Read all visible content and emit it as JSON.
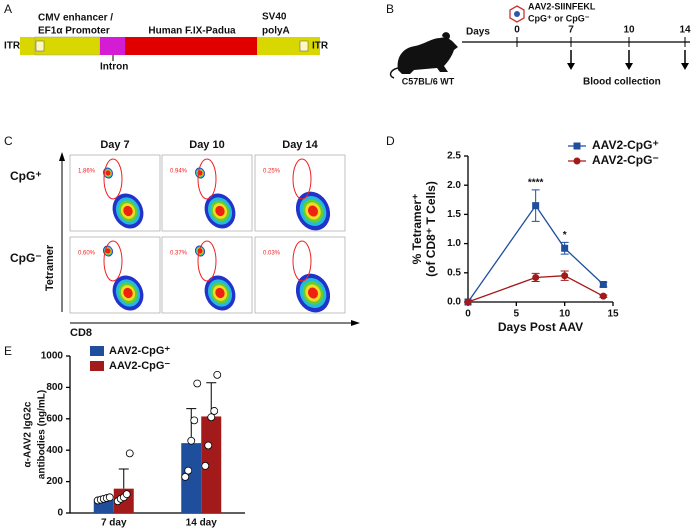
{
  "panel_labels": [
    "A",
    "B",
    "C",
    "D",
    "E"
  ],
  "construct": {
    "itr_left": "ITR",
    "promoter": [
      "CMV enhancer /",
      "EF1α Promoter"
    ],
    "gene": "Human F.IX-Padua",
    "polya": [
      "SV40",
      "polyA"
    ],
    "itr_right": "ITR",
    "intron": "Intron"
  },
  "timeline": {
    "vector": [
      "AAV2-SIINFEKL",
      "CpG⁺ or CpG⁻"
    ],
    "mouse": "C57BL/6 WT",
    "axis_label": "Days",
    "days": [
      0,
      7,
      10,
      14
    ],
    "sampling": "Blood collection"
  },
  "flow": {
    "columns": [
      "Day 7",
      "Day 10",
      "Day 14"
    ],
    "rows": [
      "CpG⁺",
      "CpG⁻"
    ],
    "y_axis": "Tetramer",
    "x_axis": "CD8",
    "frequencies": [
      [
        "1.86%",
        "0.94%",
        "0.25%"
      ],
      [
        "0.60%",
        "0.37%",
        "0.03%"
      ]
    ]
  },
  "chart_data": [
    {
      "type": "line",
      "x": [
        0,
        7,
        10,
        14
      ],
      "series": [
        {
          "name": "AAV2-CpG⁺",
          "color": "#1f4e9c",
          "values": [
            0,
            1.65,
            0.92,
            0.3
          ],
          "errors": [
            0,
            0.27,
            0.1,
            0.04
          ]
        },
        {
          "name": "AAV2-CpG⁻",
          "color": "#a31a1a",
          "values": [
            0,
            0.42,
            0.45,
            0.1
          ],
          "errors": [
            0,
            0.07,
            0.08,
            0.02
          ]
        }
      ],
      "xlim": [
        0,
        15
      ],
      "xticks": [
        0,
        5,
        10,
        15
      ],
      "ylim": [
        0,
        2.5
      ],
      "yticks": [
        {
          "value": 0,
          "label": "0.0"
        },
        0.5,
        {
          "value": 1,
          "label": "1.0"
        },
        1.5,
        {
          "value": 2,
          "label": "2.0"
        },
        2.5
      ],
      "xlabel": "Days Post AAV",
      "ylabel": [
        "% Tetramer⁺",
        "(of CD8⁺ T Cells)"
      ],
      "annotations": [
        {
          "text": "****",
          "x": 7
        },
        {
          "text": "*",
          "x": 10
        }
      ]
    },
    {
      "type": "bar",
      "categories": [
        "7 day",
        "14 day"
      ],
      "series": [
        {
          "name": "AAV2-CpG⁺",
          "color": "#1f4e9c",
          "values": [
            88,
            445
          ],
          "errors": [
            15,
            220
          ],
          "points": [
            [
              80,
              85,
              90,
              95,
              100
            ],
            [
              230,
              270,
              460,
              590,
              825
            ]
          ]
        },
        {
          "name": "AAV2-CpG⁻",
          "color": "#a31a1a",
          "values": [
            155,
            615
          ],
          "errors": [
            125,
            215
          ],
          "points": [
            [
              75,
              90,
              100,
              120,
              380
            ],
            [
              300,
              430,
              610,
              650,
              880
            ]
          ]
        }
      ],
      "ylim": [
        0,
        1000
      ],
      "yticks": [
        0,
        200,
        400,
        600,
        800,
        1000
      ],
      "ylabel": [
        "α-AAV2 IgG2c",
        "antibodies (ng/mL)"
      ]
    }
  ]
}
